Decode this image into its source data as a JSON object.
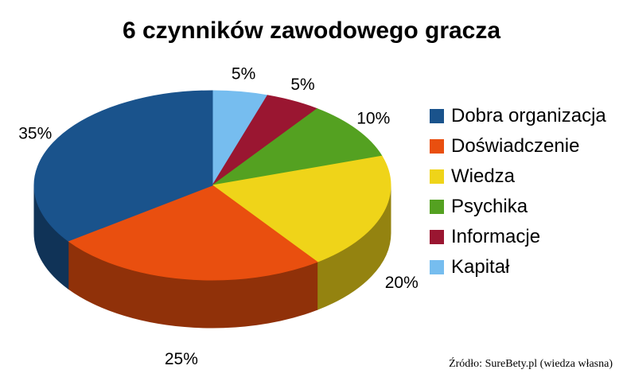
{
  "chart_data": {
    "type": "pie",
    "title": "6 czynników zawodowego gracza",
    "effect": "3d",
    "legend_position": "right",
    "data_labels": "percent-outside",
    "slices": [
      {
        "label": "Dobra organizacja",
        "value": 35,
        "pct_label": "35%",
        "color": "#1A538C"
      },
      {
        "label": "Doświadczenie",
        "value": 25,
        "pct_label": "25%",
        "color": "#E94F0F"
      },
      {
        "label": "Wiedza",
        "value": 20,
        "pct_label": "20%",
        "color": "#EFD419"
      },
      {
        "label": "Psychika",
        "value": 10,
        "pct_label": "10%",
        "color": "#54A121"
      },
      {
        "label": "Informacje",
        "value": 5,
        "pct_label": "5%",
        "color": "#9A1631"
      },
      {
        "label": "Kapitał",
        "value": 5,
        "pct_label": "5%",
        "color": "#76BDEF"
      }
    ]
  },
  "source_note": "Źródło: SureBety.pl (wiedza własna)"
}
